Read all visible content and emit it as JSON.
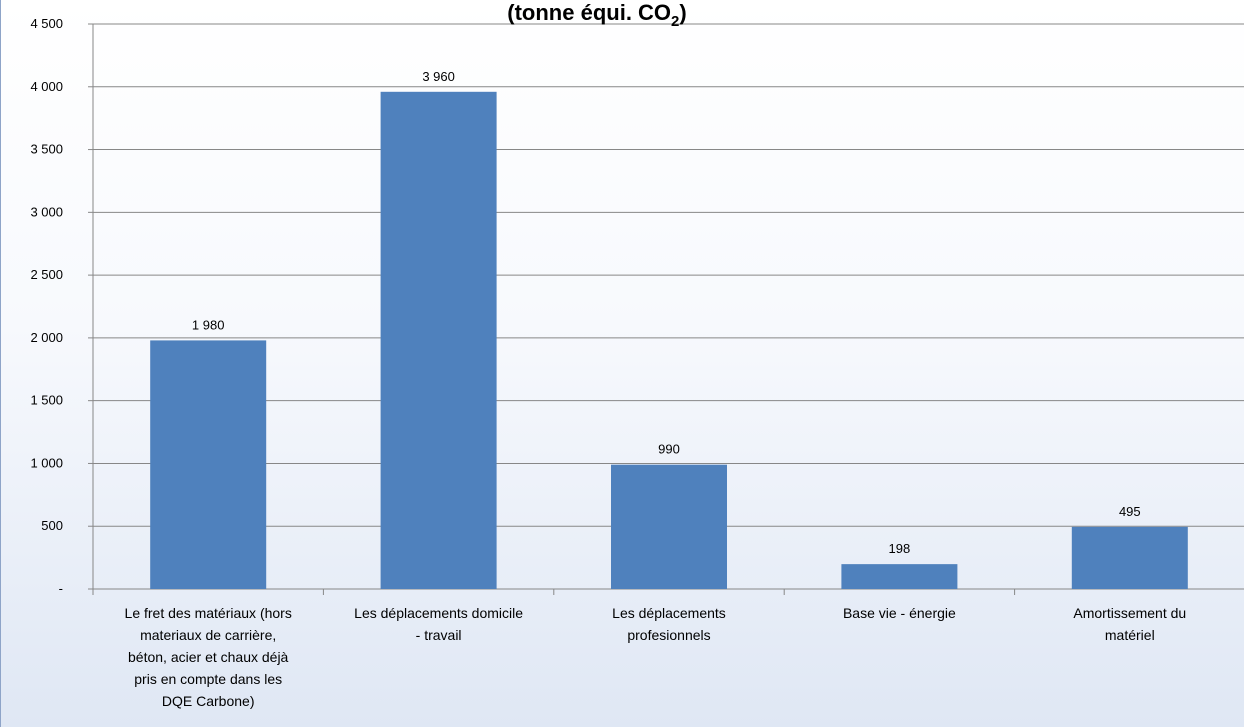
{
  "chart_data": {
    "type": "bar",
    "title": "(tonne équi. CO",
    "title_subscript": "2",
    "title_suffix": ")",
    "categories": [
      [
        "Le fret des matériaux (hors",
        "materiaux de carrière,",
        "béton, acier et chaux déjà",
        "pris en compte dans les",
        "DQE Carbone)"
      ],
      [
        "Les déplacements domicile",
        "- travail"
      ],
      [
        "Les déplacements",
        "profesionnels"
      ],
      [
        "Base vie - énergie"
      ],
      [
        "Amortissement du",
        "matériel"
      ]
    ],
    "values": [
      1980,
      3960,
      990,
      198,
      495
    ],
    "data_labels": [
      "1 980",
      "3 960",
      "990",
      "198",
      "495"
    ],
    "ylim": [
      0,
      4500
    ],
    "yticks": [
      0,
      500,
      1000,
      1500,
      2000,
      2500,
      3000,
      3500,
      4000,
      4500
    ],
    "ytick_labels": [
      "-",
      "500",
      "1 000",
      "1 500",
      "2 000",
      "2 500",
      "3 000",
      "3 500",
      "4 000",
      "4 500"
    ],
    "grid": true,
    "legend": "none",
    "bar_color": "#4f81bd",
    "grid_color": "#878787"
  }
}
